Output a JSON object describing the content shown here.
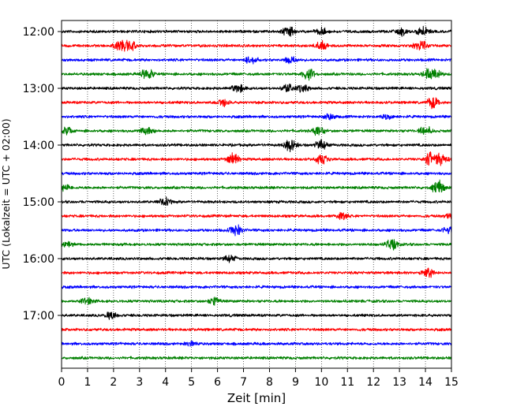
{
  "chart_data": {
    "type": "line",
    "title": "",
    "xlabel": "Zeit  [min]",
    "ylabel": "UTC (Lokalzeit = UTC + 02:00)",
    "xlim": [
      0,
      15
    ],
    "x_ticks": [
      0,
      1,
      2,
      3,
      4,
      5,
      6,
      7,
      8,
      9,
      10,
      11,
      12,
      13,
      14,
      15
    ],
    "grid": "vertical dotted",
    "trace_interval_min": 15,
    "y_ticks": [
      "12:00",
      "13:00",
      "14:00",
      "15:00",
      "16:00",
      "17:00"
    ],
    "series": [
      {
        "start": "12:00",
        "color": "#000000",
        "bursts": [
          [
            8.7,
            0.5
          ],
          [
            10.0,
            0.3
          ],
          [
            13.1,
            0.3
          ],
          [
            13.9,
            0.4
          ]
        ]
      },
      {
        "start": "12:15",
        "color": "#ff0000",
        "bursts": [
          [
            2.6,
            0.6
          ],
          [
            2.2,
            0.4
          ],
          [
            10.0,
            0.4
          ],
          [
            13.8,
            0.5
          ]
        ]
      },
      {
        "start": "12:30",
        "color": "#0000ff",
        "bursts": [
          [
            7.3,
            0.3
          ],
          [
            8.8,
            0.3
          ]
        ]
      },
      {
        "start": "12:45",
        "color": "#008000",
        "bursts": [
          [
            3.3,
            0.5
          ],
          [
            9.5,
            0.5
          ],
          [
            14.1,
            0.4
          ],
          [
            14.4,
            0.4
          ]
        ]
      },
      {
        "start": "13:00",
        "color": "#000000",
        "bursts": [
          [
            6.8,
            0.4
          ],
          [
            8.7,
            0.4
          ],
          [
            9.3,
            0.3
          ]
        ]
      },
      {
        "start": "13:15",
        "color": "#ff0000",
        "bursts": [
          [
            6.2,
            0.4
          ],
          [
            14.3,
            0.5
          ]
        ]
      },
      {
        "start": "13:30",
        "color": "#0000ff",
        "bursts": [
          [
            10.3,
            0.3
          ],
          [
            12.5,
            0.2
          ]
        ]
      },
      {
        "start": "13:45",
        "color": "#008000",
        "bursts": [
          [
            3.3,
            0.4
          ],
          [
            9.9,
            0.4
          ],
          [
            14.0,
            0.4
          ],
          [
            0.2,
            0.3
          ]
        ]
      },
      {
        "start": "14:00",
        "color": "#000000",
        "bursts": [
          [
            8.8,
            0.5
          ],
          [
            10.0,
            0.4
          ]
        ]
      },
      {
        "start": "14:15",
        "color": "#ff0000",
        "bursts": [
          [
            6.6,
            0.5
          ],
          [
            10.0,
            0.4
          ],
          [
            14.2,
            0.6
          ],
          [
            14.6,
            0.5
          ]
        ]
      },
      {
        "start": "14:30",
        "color": "#0000ff",
        "bursts": []
      },
      {
        "start": "14:45",
        "color": "#008000",
        "bursts": [
          [
            14.5,
            0.6
          ],
          [
            0.1,
            0.3
          ]
        ]
      },
      {
        "start": "15:00",
        "color": "#000000",
        "bursts": [
          [
            4.0,
            0.3
          ]
        ]
      },
      {
        "start": "15:15",
        "color": "#ff0000",
        "bursts": [
          [
            10.8,
            0.3
          ],
          [
            15.0,
            0.3
          ]
        ]
      },
      {
        "start": "15:30",
        "color": "#0000ff",
        "bursts": [
          [
            6.7,
            0.5
          ],
          [
            14.9,
            0.3
          ]
        ]
      },
      {
        "start": "15:45",
        "color": "#008000",
        "bursts": [
          [
            12.7,
            0.5
          ],
          [
            0.2,
            0.3
          ]
        ]
      },
      {
        "start": "16:00",
        "color": "#000000",
        "bursts": [
          [
            6.5,
            0.3
          ]
        ]
      },
      {
        "start": "16:15",
        "color": "#ff0000",
        "bursts": [
          [
            14.1,
            0.4
          ]
        ]
      },
      {
        "start": "16:30",
        "color": "#0000ff",
        "bursts": []
      },
      {
        "start": "16:45",
        "color": "#008000",
        "bursts": [
          [
            5.9,
            0.3
          ],
          [
            1.0,
            0.3
          ]
        ]
      },
      {
        "start": "17:00",
        "color": "#000000",
        "bursts": [
          [
            1.9,
            0.3
          ]
        ]
      },
      {
        "start": "17:15",
        "color": "#ff0000",
        "bursts": []
      },
      {
        "start": "17:30",
        "color": "#0000ff",
        "bursts": [
          [
            5.0,
            0.2
          ]
        ]
      },
      {
        "start": "17:45",
        "color": "#008000",
        "bursts": []
      }
    ]
  }
}
